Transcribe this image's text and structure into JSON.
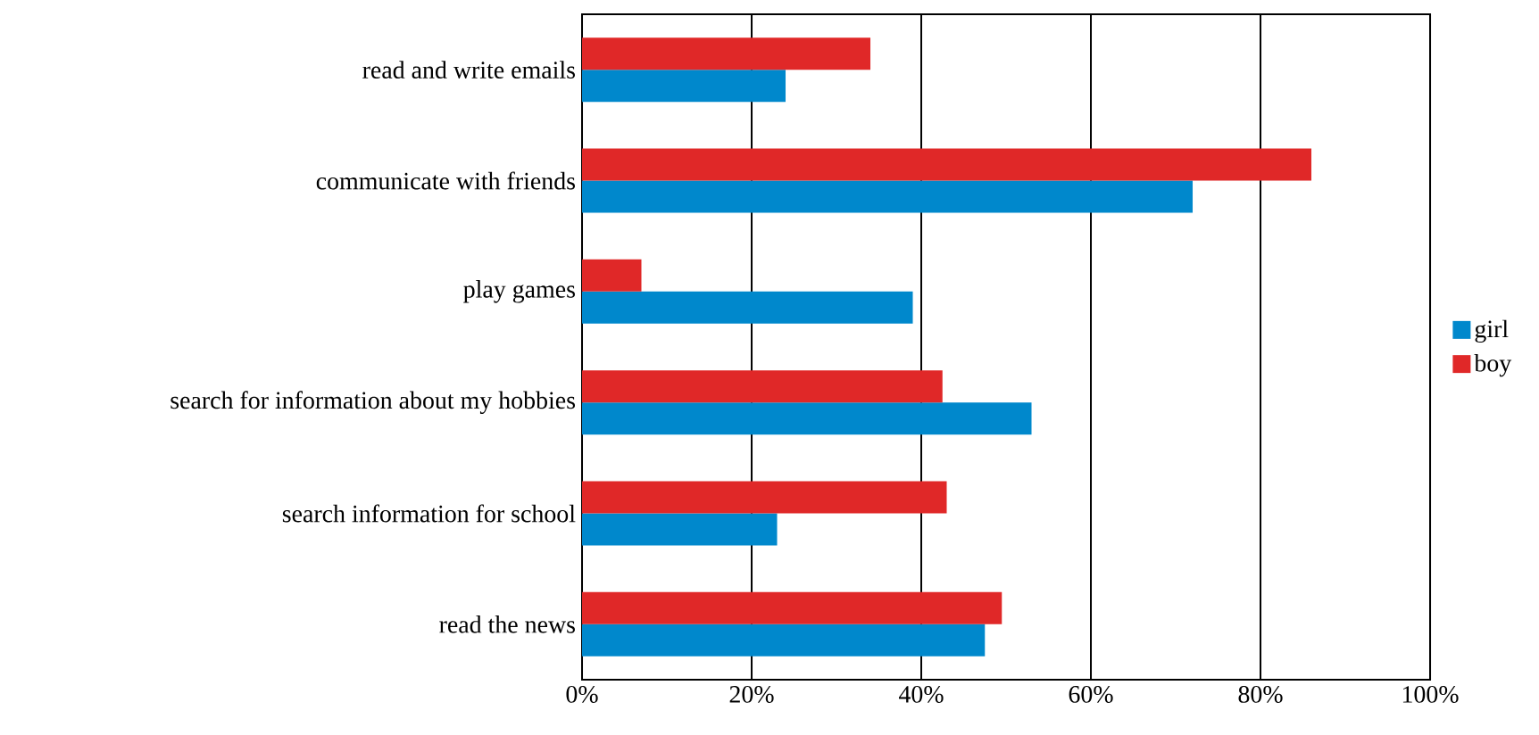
{
  "chart_data": {
    "type": "bar",
    "orientation": "horizontal",
    "categories": [
      "read and write emails",
      "communicate with friends",
      "play games",
      "search for information about my hobbies",
      "search information for school",
      "read the news"
    ],
    "series": [
      {
        "name": "girl",
        "color": "#0088cc",
        "values": [
          24,
          72,
          39,
          53,
          23,
          47.5
        ]
      },
      {
        "name": "boy",
        "color": "#e02828",
        "values": [
          34,
          86,
          7,
          42.5,
          43,
          49.5
        ]
      }
    ],
    "xlim": [
      0,
      100
    ],
    "xticks": [
      {
        "value": 0,
        "label": "0%"
      },
      {
        "value": 20,
        "label": "20%"
      },
      {
        "value": 40,
        "label": "40%"
      },
      {
        "value": 60,
        "label": "60%"
      },
      {
        "value": 80,
        "label": "80%"
      },
      {
        "value": 100,
        "label": "100%"
      }
    ],
    "grid": "x",
    "legend": "right"
  }
}
